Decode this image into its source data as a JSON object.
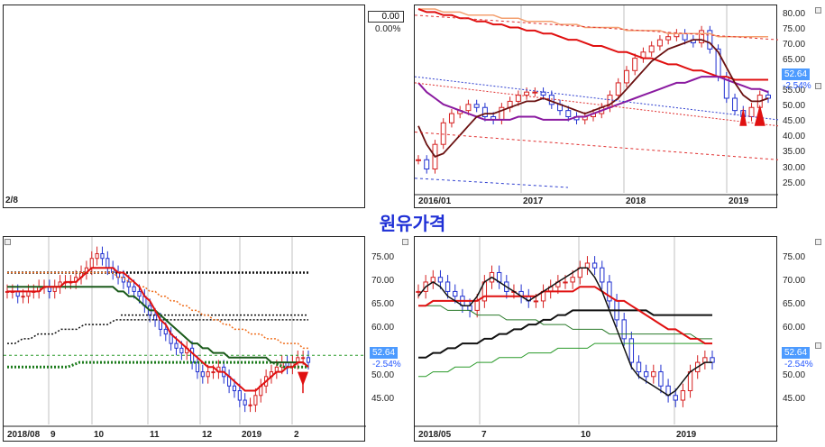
{
  "title": "원유가격",
  "panel_left_top": {
    "label": "2/8",
    "value": "0.00",
    "pct": "0.00%"
  },
  "chart_data": [
    {
      "type": "line",
      "name": "weekly",
      "x_labels": [
        "2016/01",
        "2017",
        "2018",
        "2019"
      ],
      "y_ticks": [
        25,
        30,
        35,
        40,
        45,
        50,
        55,
        60,
        65,
        70,
        75,
        80
      ],
      "ylim": [
        24,
        82
      ],
      "last_value": "52.64",
      "change": "-2.54%",
      "price": [
        33,
        30,
        38,
        45,
        48,
        49,
        51,
        50,
        47,
        46,
        50,
        52,
        54,
        55,
        55,
        54,
        51,
        49,
        47,
        46,
        47,
        48,
        50,
        54,
        58,
        62,
        66,
        68,
        70,
        72,
        73,
        74,
        72,
        71,
        75,
        69,
        60,
        53,
        49,
        47,
        50,
        54,
        53
      ],
      "ma_short": [
        44,
        38,
        34,
        35,
        38,
        41,
        44,
        47,
        48,
        48,
        49,
        50,
        51,
        52,
        52,
        53,
        52,
        51,
        50,
        49,
        48,
        49,
        50,
        51,
        53,
        56,
        59,
        62,
        65,
        67,
        69,
        70,
        71,
        72,
        72,
        71,
        68,
        63,
        58,
        54,
        52,
        52,
        53
      ],
      "ma_mid": [
        58,
        55,
        53,
        51,
        50,
        49,
        48,
        47,
        46,
        46,
        46,
        46,
        47,
        47,
        47,
        46,
        46,
        46,
        46,
        47,
        47,
        48,
        49,
        50,
        51,
        52,
        53,
        54,
        55,
        56,
        57,
        58,
        58,
        59,
        60,
        60,
        60,
        59,
        58,
        57,
        56,
        56,
        55
      ],
      "ma_long": [
        82,
        81,
        81,
        80,
        80,
        79,
        79,
        78,
        78,
        77,
        77,
        76,
        76,
        75,
        75,
        74,
        74,
        73,
        72,
        72,
        71,
        70,
        70,
        69,
        68,
        68,
        67,
        66,
        66,
        65,
        64,
        64,
        63,
        62,
        62,
        61,
        60,
        60,
        59,
        59,
        59,
        59,
        59
      ],
      "ma_very_long": [
        82,
        82,
        82,
        81,
        81,
        81,
        80,
        80,
        80,
        80,
        79,
        79,
        79,
        78,
        78,
        78,
        78,
        77,
        77,
        77,
        76,
        76,
        76,
        76,
        76,
        75,
        75,
        75,
        75,
        75,
        74,
        74,
        74,
        74,
        74,
        74,
        73,
        73,
        73,
        73,
        73,
        73,
        73
      ]
    },
    {
      "type": "line",
      "name": "daily-2018-08",
      "x_labels": [
        "2018/08",
        "9",
        "10",
        "11",
        "12",
        "2019",
        "2"
      ],
      "y_ticks": [
        45,
        50,
        55,
        60,
        65,
        70,
        75
      ],
      "ylim": [
        41,
        78
      ],
      "last_value": "52.64",
      "change": "-2.54%",
      "price": [
        68,
        68,
        67,
        67,
        68,
        68,
        69,
        69,
        68,
        69,
        70,
        70,
        70,
        71,
        72,
        73,
        75,
        76,
        75,
        73,
        72,
        71,
        70,
        69,
        68,
        67,
        65,
        63,
        62,
        60,
        59,
        57,
        56,
        55,
        56,
        53,
        51,
        50,
        51,
        51,
        52,
        50,
        48,
        47,
        45,
        44,
        44,
        46,
        48,
        50,
        51,
        52,
        53,
        52,
        53,
        54,
        54,
        53
      ],
      "ma_fast": [
        68,
        68,
        68,
        68,
        68,
        68,
        68,
        69,
        69,
        69,
        69,
        70,
        70,
        70,
        71,
        72,
        73,
        73,
        73,
        73,
        73,
        72,
        72,
        71,
        70,
        69,
        67,
        66,
        64,
        62,
        61,
        59,
        58,
        57,
        56,
        55,
        54,
        53,
        52,
        52,
        51,
        51,
        50,
        49,
        48,
        47,
        47,
        47,
        48,
        49,
        50,
        51,
        51,
        52,
        52,
        53,
        53,
        52
      ],
      "ma_green": [
        69,
        69,
        69,
        69,
        69,
        69,
        69,
        69,
        69,
        69,
        69,
        69,
        69,
        69,
        69,
        69,
        69,
        69,
        69,
        69,
        69,
        68,
        68,
        67,
        67,
        66,
        65,
        64,
        64,
        63,
        62,
        61,
        60,
        59,
        58,
        57,
        57,
        56,
        56,
        55,
        55,
        55,
        54,
        54,
        54,
        54,
        54,
        54,
        54,
        54,
        53,
        53,
        53,
        53,
        53,
        53,
        53,
        52
      ],
      "ma_orange": [
        72,
        72,
        72,
        72,
        72,
        72,
        72,
        72,
        72,
        72,
        72,
        72,
        72,
        72,
        72,
        72,
        72,
        72,
        72,
        72,
        72,
        71,
        71,
        70,
        70,
        69,
        69,
        68,
        68,
        67,
        67,
        66,
        66,
        65,
        65,
        64,
        64,
        63,
        63,
        62,
        62,
        61,
        61,
        60,
        60,
        60,
        59,
        59,
        59,
        58,
        58,
        58,
        57,
        57,
        57,
        57,
        56,
        56
      ],
      "dotted_black_top": 72,
      "dotted_black_mid": 63,
      "dotted_black_low": [
        57,
        57,
        58,
        58,
        59,
        59,
        59,
        60,
        60,
        60,
        61,
        61,
        61,
        61,
        62,
        62,
        62,
        62,
        62,
        62,
        62,
        62,
        62,
        62,
        62,
        62,
        62,
        62,
        62,
        62,
        62,
        62,
        62,
        62,
        62,
        62,
        62,
        62,
        62,
        62
      ],
      "dotted_green": [
        52,
        52,
        52,
        52,
        52,
        52,
        53,
        53,
        53,
        53,
        53,
        53,
        53,
        53,
        53,
        53,
        53,
        53,
        53,
        53,
        53,
        53,
        53,
        52,
        52,
        52
      ],
      "hline": 54.5
    },
    {
      "type": "line",
      "name": "daily-2018-05",
      "x_labels": [
        "2018/05",
        "7",
        "10",
        "2019"
      ],
      "y_ticks": [
        45,
        50,
        55,
        60,
        65,
        70,
        75
      ],
      "ylim": [
        41,
        78
      ],
      "last_value": "52.64",
      "change": "-2.54%",
      "price": [
        68,
        70,
        71,
        70,
        68,
        67,
        65,
        64,
        66,
        70,
        72,
        70,
        68,
        68,
        67,
        66,
        66,
        68,
        69,
        70,
        70,
        71,
        73,
        74,
        73,
        70,
        66,
        62,
        58,
        53,
        51,
        50,
        51,
        48,
        46,
        45,
        47,
        51,
        53,
        54,
        53
      ],
      "ma_black": [
        67,
        69,
        70,
        69,
        67,
        66,
        65,
        65,
        67,
        70,
        71,
        70,
        69,
        68,
        67,
        66,
        67,
        68,
        69,
        70,
        71,
        72,
        73,
        73,
        71,
        68,
        64,
        60,
        56,
        52,
        50,
        49,
        48,
        47,
        46,
        47,
        49,
        51,
        52,
        53,
        53
      ],
      "ma_red": [
        65,
        65,
        66,
        66,
        66,
        66,
        66,
        66,
        66,
        67,
        67,
        67,
        67,
        67,
        67,
        67,
        67,
        68,
        68,
        68,
        68,
        68,
        69,
        69,
        69,
        68,
        67,
        66,
        66,
        65,
        64,
        63,
        62,
        61,
        60,
        60,
        59,
        58,
        58,
        57,
        57
      ],
      "ma_long_black": [
        54,
        54,
        55,
        55,
        56,
        56,
        57,
        57,
        57,
        58,
        58,
        59,
        59,
        60,
        60,
        61,
        61,
        62,
        62,
        63,
        63,
        64,
        64,
        64,
        64,
        64,
        64,
        64,
        64,
        64,
        64,
        64,
        63,
        63,
        63,
        63,
        63,
        63,
        63,
        63,
        63
      ],
      "ma_green_desc": [
        65,
        65,
        65,
        65,
        64,
        64,
        64,
        64,
        63,
        63,
        63,
        63,
        62,
        62,
        62,
        62,
        62,
        61,
        61,
        61,
        61,
        60,
        60,
        60,
        60,
        60,
        59,
        59,
        59,
        59,
        59,
        59,
        59,
        59,
        59,
        59,
        59,
        59,
        58,
        58,
        58
      ],
      "ma_green_asc": [
        50,
        50,
        51,
        51,
        51,
        52,
        52,
        52,
        53,
        53,
        53,
        54,
        54,
        54,
        54,
        55,
        55,
        55,
        55,
        56,
        56,
        56,
        56,
        56,
        57,
        57,
        57,
        57,
        57,
        57,
        57,
        57,
        57,
        57,
        57,
        57,
        57,
        57,
        57,
        57,
        57
      ]
    }
  ]
}
